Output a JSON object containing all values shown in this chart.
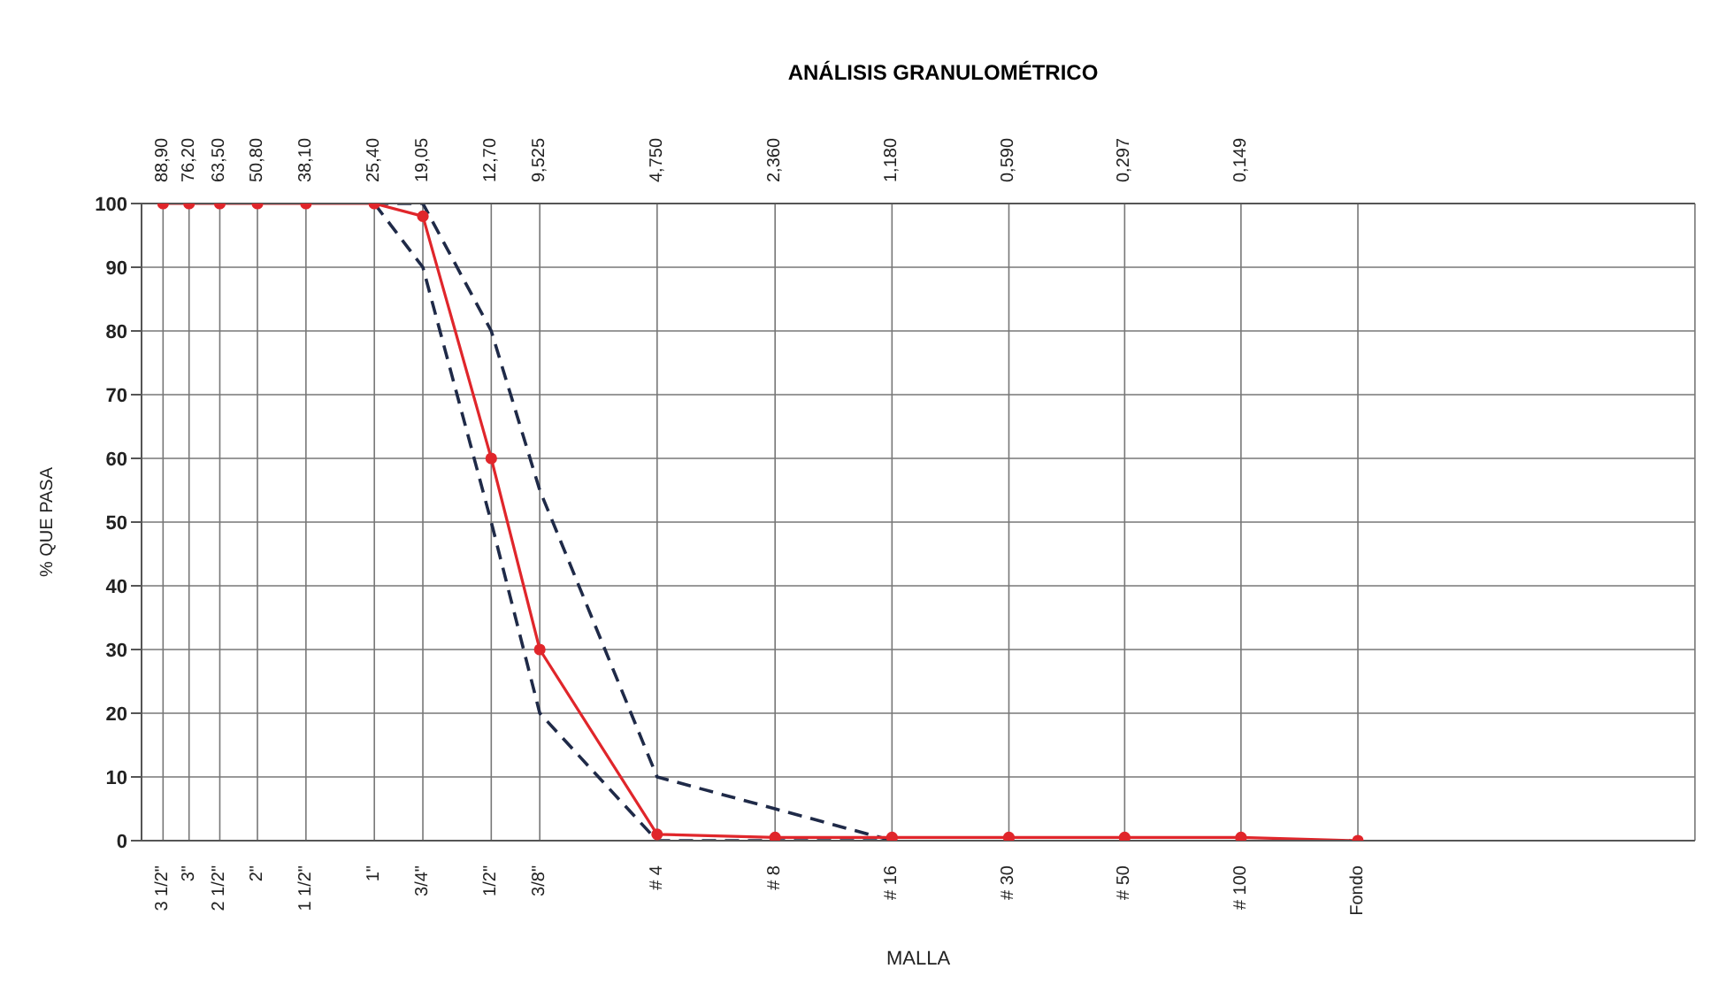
{
  "chart_data": {
    "type": "line",
    "title": "ANÁLISIS GRANULOMÉTRICO",
    "xlabel": "MALLA",
    "legend": false,
    "ylabel": "% QUE PASA",
    "log": "x",
    "xlim": [
      101,
      0.0101
    ],
    "ylim": [
      0,
      100
    ],
    "yticks": [
      0,
      10,
      20,
      30,
      40,
      50,
      60,
      70,
      80,
      90,
      100
    ],
    "xticks": [
      {
        "value": 88.9,
        "label": "88,90"
      },
      {
        "value": 76.2,
        "label": "76,20"
      },
      {
        "value": 63.5,
        "label": "63,50"
      },
      {
        "value": 50.8,
        "label": "50,80"
      },
      {
        "value": 38.1,
        "label": "38,10"
      },
      {
        "value": 25.4,
        "label": "25,40"
      },
      {
        "value": 19.05,
        "label": "19,05"
      },
      {
        "value": 12.7,
        "label": "12,70"
      },
      {
        "value": 9.525,
        "label": "9,525"
      },
      {
        "value": 4.75,
        "label": "4,750"
      },
      {
        "value": 2.36,
        "label": "2,360"
      },
      {
        "value": 1.18,
        "label": "1,180"
      },
      {
        "value": 0.59,
        "label": "0,590"
      },
      {
        "value": 0.297,
        "label": "0,297"
      },
      {
        "value": 0.149,
        "label": "0,149"
      }
    ],
    "annotations": [
      "3 1/2\"",
      "3\"",
      "2 1/2\"",
      "2\"",
      "1 1/2\"",
      "1\"",
      "3/4\"",
      "1/2\"",
      "3/8\"",
      "# 4",
      "# 8",
      "# 16",
      "# 30",
      "# 50",
      "# 100",
      "Fondo"
    ],
    "grid": true,
    "series": [
      {
        "color": "#1f2a48",
        "line_style": "dashed",
        "marker": "none",
        "x": [
          25.4,
          19.05,
          12.7,
          9.525,
          4.75,
          2.36,
          1.18
        ],
        "values": [
          100,
          100,
          80,
          55,
          10,
          5,
          0
        ]
      },
      {
        "color": "#1f2a48",
        "line_style": "dashed",
        "marker": "none",
        "x": [
          25.4,
          19.05,
          12.7,
          9.525,
          4.75,
          2.36,
          1.18
        ],
        "values": [
          100,
          90,
          50,
          20,
          0,
          0,
          0
        ]
      },
      {
        "color": "#e0262b",
        "line_style": "solid",
        "marker": "circle",
        "x": [
          88.9,
          76.2,
          63.5,
          50.8,
          38.1,
          25.4,
          19.05,
          12.7,
          9.525,
          4.75,
          2.36,
          1.18,
          0.59,
          0.297,
          0.149,
          0.0745
        ],
        "values": [
          100,
          100,
          100,
          100,
          100,
          100,
          98,
          60,
          30,
          1,
          0.5,
          0.5,
          0.5,
          0.5,
          0.5,
          0
        ]
      }
    ]
  }
}
